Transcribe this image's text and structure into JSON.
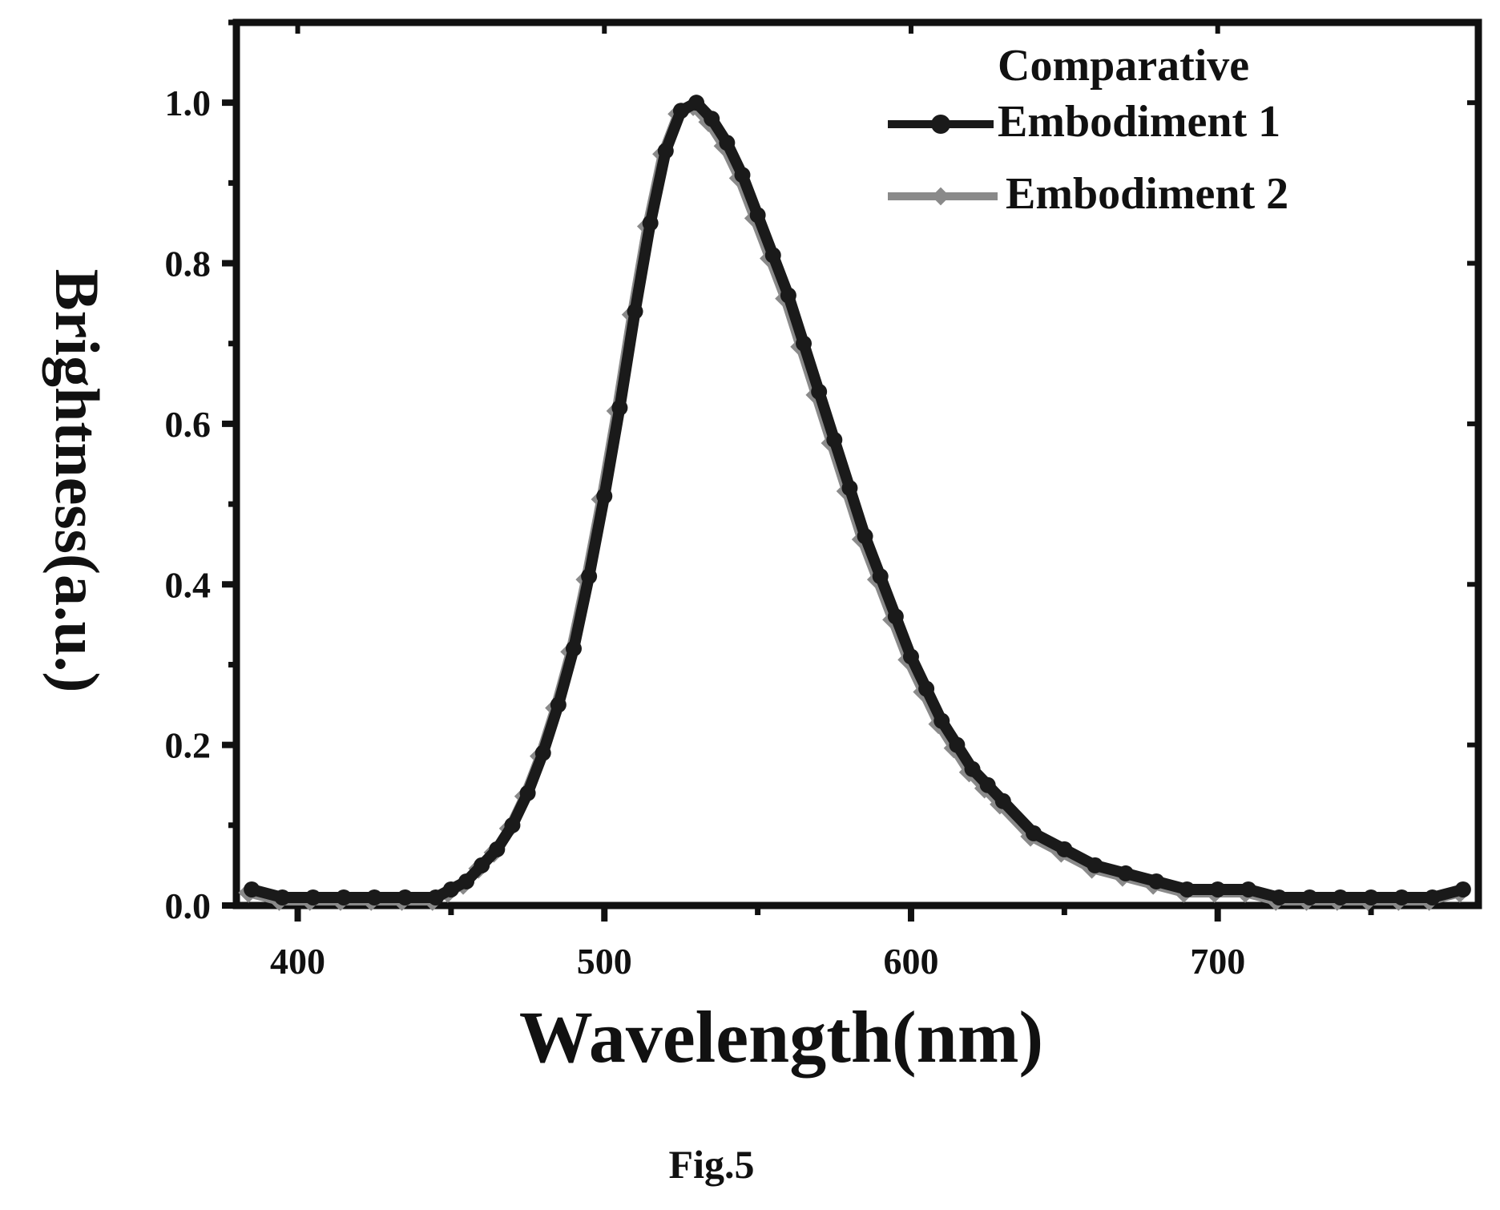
{
  "chart_data": {
    "type": "line",
    "xlabel": "Wavelength(nm)",
    "ylabel": "Brightness(a.u.)",
    "xlim": [
      380,
      785
    ],
    "ylim": [
      0,
      1.1
    ],
    "xticks": [
      400,
      500,
      600,
      700
    ],
    "xtick_labels": [
      "400",
      "500",
      "600",
      "700"
    ],
    "yticks": [
      0.0,
      0.2,
      0.4,
      0.6,
      0.8,
      1.0
    ],
    "ytick_labels": [
      "0.0",
      "0.2",
      "0.4",
      "0.6",
      "0.8",
      "1.0"
    ],
    "legend_position": "top-right",
    "grid": false,
    "x": [
      385,
      395,
      405,
      415,
      425,
      435,
      445,
      450,
      455,
      460,
      465,
      470,
      475,
      480,
      485,
      490,
      495,
      500,
      505,
      510,
      515,
      520,
      525,
      530,
      535,
      540,
      545,
      550,
      555,
      560,
      565,
      570,
      575,
      580,
      585,
      590,
      595,
      600,
      605,
      610,
      615,
      620,
      625,
      630,
      640,
      650,
      660,
      670,
      680,
      690,
      700,
      710,
      720,
      730,
      740,
      750,
      760,
      770,
      780
    ],
    "series": [
      {
        "name": "Comparative Embodiment 1",
        "marker": "circle",
        "color": "#1a1a1a",
        "values": [
          0.02,
          0.01,
          0.01,
          0.01,
          0.01,
          0.01,
          0.01,
          0.02,
          0.03,
          0.05,
          0.07,
          0.1,
          0.14,
          0.19,
          0.25,
          0.32,
          0.41,
          0.51,
          0.62,
          0.74,
          0.85,
          0.94,
          0.99,
          1.0,
          0.98,
          0.95,
          0.91,
          0.86,
          0.81,
          0.76,
          0.7,
          0.64,
          0.58,
          0.52,
          0.46,
          0.41,
          0.36,
          0.31,
          0.27,
          0.23,
          0.2,
          0.17,
          0.15,
          0.13,
          0.09,
          0.07,
          0.05,
          0.04,
          0.03,
          0.02,
          0.02,
          0.02,
          0.01,
          0.01,
          0.01,
          0.01,
          0.01,
          0.01,
          0.02
        ]
      },
      {
        "name": "Embodiment 2",
        "marker": "diamond",
        "color": "#8a8a8a",
        "values": [
          0.02,
          0.01,
          0.01,
          0.01,
          0.01,
          0.01,
          0.01,
          0.02,
          0.03,
          0.05,
          0.07,
          0.1,
          0.14,
          0.19,
          0.25,
          0.32,
          0.41,
          0.51,
          0.62,
          0.74,
          0.85,
          0.94,
          0.99,
          1.0,
          0.98,
          0.95,
          0.91,
          0.86,
          0.81,
          0.76,
          0.7,
          0.64,
          0.58,
          0.52,
          0.46,
          0.41,
          0.36,
          0.31,
          0.27,
          0.23,
          0.2,
          0.17,
          0.15,
          0.13,
          0.09,
          0.07,
          0.05,
          0.04,
          0.03,
          0.02,
          0.02,
          0.02,
          0.01,
          0.01,
          0.01,
          0.01,
          0.01,
          0.01,
          0.02
        ]
      }
    ],
    "legend_lines": [
      "Comparative",
      "Embodiment 1",
      "Embodiment 2"
    ]
  },
  "caption": "Fig.5"
}
